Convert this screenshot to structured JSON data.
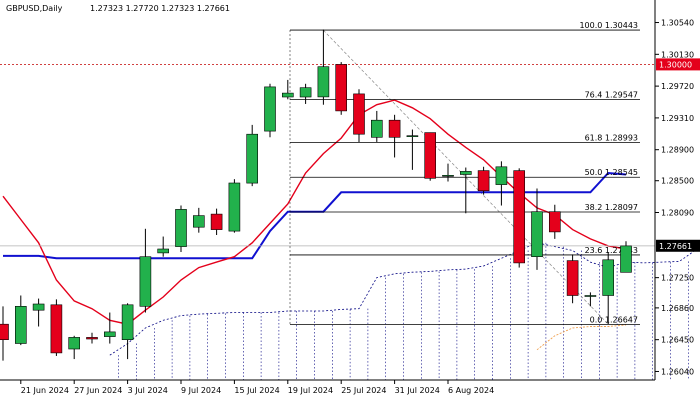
{
  "header": {
    "symbol": "GBPUSD,Daily",
    "ohlc": "1.27323 1.27720 1.27323 1.27661"
  },
  "colors": {
    "bull": "#22b14c",
    "bear": "#e4001b",
    "fast_line": "#e4001b",
    "base_line": "#1010d0",
    "fib": "#000000",
    "resistance": "#c00000",
    "badge_red": "#e4001b",
    "badge_dark": "#000000",
    "cloud": "#000080",
    "lagging": "#f0a050"
  },
  "price_axis": {
    "ticks": [
      "1.30540",
      "1.30130",
      "1.29720",
      "1.29310",
      "1.28900",
      "1.28500",
      "1.28090",
      "1.27250",
      "1.26860",
      "1.26450",
      "1.26040"
    ],
    "current_badge": "1.27661",
    "level_badge": "1.30000"
  },
  "time_axis": {
    "labels": [
      "21 Jun 2024",
      "27 Jun 2024",
      "3 Jul 2024",
      "9 Jul 2024",
      "15 Jul 2024",
      "19 Jul 2024",
      "25 Jul 2024",
      "31 Jul 2024",
      "6 Aug 2024"
    ]
  },
  "fib_levels": [
    {
      "label": "100.0 1.30443",
      "value": 1.30443
    },
    {
      "label": "76.4 1.29547",
      "value": 1.29547
    },
    {
      "label": "61.8 1.28993",
      "value": 1.28993
    },
    {
      "label": "50.0 1.28545",
      "value": 1.28545
    },
    {
      "label": "38.2 1.28097",
      "value": 1.28097
    },
    {
      "label": "23.6 1.27543",
      "value": 1.27543
    },
    {
      "label": "0.0 1.26647",
      "value": 1.26647
    }
  ],
  "chart_data": {
    "type": "candlestick",
    "symbol": "GBPUSD",
    "timeframe": "Daily",
    "ylim": [
      1.2593,
      1.3065
    ],
    "resistance_level": 1.3,
    "candles": [
      {
        "o": 1.2665,
        "h": 1.2688,
        "l": 1.2618,
        "c": 1.2645
      },
      {
        "o": 1.264,
        "h": 1.2702,
        "l": 1.2638,
        "c": 1.2688
      },
      {
        "o": 1.2683,
        "h": 1.2698,
        "l": 1.2662,
        "c": 1.2691
      },
      {
        "o": 1.269,
        "h": 1.2697,
        "l": 1.2624,
        "c": 1.2628
      },
      {
        "o": 1.2633,
        "h": 1.265,
        "l": 1.262,
        "c": 1.2648
      },
      {
        "o": 1.2648,
        "h": 1.2654,
        "l": 1.264,
        "c": 1.2646
      },
      {
        "o": 1.2649,
        "h": 1.268,
        "l": 1.264,
        "c": 1.2655
      },
      {
        "o": 1.2645,
        "h": 1.2692,
        "l": 1.262,
        "c": 1.269
      },
      {
        "o": 1.2688,
        "h": 1.2788,
        "l": 1.268,
        "c": 1.2752
      },
      {
        "o": 1.2757,
        "h": 1.2778,
        "l": 1.2752,
        "c": 1.2762
      },
      {
        "o": 1.2765,
        "h": 1.2818,
        "l": 1.2758,
        "c": 1.2813
      },
      {
        "o": 1.279,
        "h": 1.2815,
        "l": 1.2783,
        "c": 1.2805
      },
      {
        "o": 1.2807,
        "h": 1.2814,
        "l": 1.278,
        "c": 1.2787
      },
      {
        "o": 1.2785,
        "h": 1.2852,
        "l": 1.2783,
        "c": 1.2847
      },
      {
        "o": 1.2847,
        "h": 1.2922,
        "l": 1.2843,
        "c": 1.291
      },
      {
        "o": 1.2914,
        "h": 1.2975,
        "l": 1.2906,
        "c": 1.2971
      },
      {
        "o": 1.2958,
        "h": 1.298,
        "l": 1.2955,
        "c": 1.2963
      },
      {
        "o": 1.2958,
        "h": 1.2975,
        "l": 1.2949,
        "c": 1.297
      },
      {
        "o": 1.2958,
        "h": 1.3045,
        "l": 1.2948,
        "c": 1.2997
      },
      {
        "o": 1.3,
        "h": 1.3003,
        "l": 1.2935,
        "c": 1.294
      },
      {
        "o": 1.2962,
        "h": 1.2968,
        "l": 1.29,
        "c": 1.291
      },
      {
        "o": 1.2906,
        "h": 1.294,
        "l": 1.29,
        "c": 1.2928
      },
      {
        "o": 1.2928,
        "h": 1.2935,
        "l": 1.288,
        "c": 1.2906
      },
      {
        "o": 1.2907,
        "h": 1.2916,
        "l": 1.2864,
        "c": 1.2908
      },
      {
        "o": 1.2912,
        "h": 1.2912,
        "l": 1.285,
        "c": 1.2853
      },
      {
        "o": 1.2857,
        "h": 1.2872,
        "l": 1.2849,
        "c": 1.2857
      },
      {
        "o": 1.2858,
        "h": 1.2867,
        "l": 1.2808,
        "c": 1.2862
      },
      {
        "o": 1.2863,
        "h": 1.2868,
        "l": 1.2832,
        "c": 1.2837
      },
      {
        "o": 1.2845,
        "h": 1.2875,
        "l": 1.2818,
        "c": 1.2868
      },
      {
        "o": 1.2863,
        "h": 1.2866,
        "l": 1.2738,
        "c": 1.2744
      },
      {
        "o": 1.2752,
        "h": 1.284,
        "l": 1.2735,
        "c": 1.281
      },
      {
        "o": 1.281,
        "h": 1.2819,
        "l": 1.2775,
        "c": 1.2784
      },
      {
        "o": 1.2747,
        "h": 1.2755,
        "l": 1.2692,
        "c": 1.2702
      },
      {
        "o": 1.2702,
        "h": 1.2706,
        "l": 1.2688,
        "c": 1.2702
      },
      {
        "o": 1.2702,
        "h": 1.2758,
        "l": 1.2665,
        "c": 1.2748
      },
      {
        "o": 1.2732,
        "h": 1.2772,
        "l": 1.2732,
        "c": 1.2766
      }
    ],
    "indicators": {
      "tenkan": [
        1.283,
        1.28,
        1.277,
        1.2722,
        1.2695,
        1.2685,
        1.267,
        1.2665,
        1.2683,
        1.27,
        1.2722,
        1.2738,
        1.2745,
        1.2752,
        1.277,
        1.2795,
        1.282,
        1.286,
        1.2885,
        1.2905,
        1.2935,
        1.2948,
        1.2954,
        1.2944,
        1.293,
        1.291,
        1.2893,
        1.2877,
        1.2855,
        1.2834,
        1.2815,
        1.2806,
        1.2787,
        1.2775,
        1.2766,
        1.2762
      ],
      "kijun": [
        1.2753,
        1.2753,
        1.2753,
        1.275,
        1.275,
        1.275,
        1.275,
        1.275,
        1.275,
        1.275,
        1.275,
        1.275,
        1.275,
        1.275,
        1.275,
        1.2785,
        1.281,
        1.281,
        1.281,
        1.2835,
        1.2835,
        1.2835,
        1.2835,
        1.2835,
        1.2835,
        1.2835,
        1.2835,
        1.2835,
        1.2835,
        1.2835,
        1.2835,
        1.2835,
        1.2835,
        1.2835,
        1.286,
        1.2858
      ],
      "cloud_upper": [
        1.2625,
        1.264,
        1.266,
        1.267,
        1.2676,
        1.2678,
        1.2679,
        1.268,
        1.268,
        1.268,
        1.2682,
        1.2682,
        1.2682,
        1.2684,
        1.2685,
        1.2725,
        1.273,
        1.2732,
        1.2733,
        1.2735,
        1.2736,
        1.274,
        1.275,
        1.276,
        1.277,
        1.2765,
        1.276,
        1.2745,
        1.2738,
        1.2745,
        1.2744,
        1.2745,
        1.2746,
        1.2762,
        1.278
      ],
      "lagging_tail": [
        1.2632,
        1.265,
        1.266,
        1.2662,
        1.2662,
        1.2664
      ]
    }
  }
}
